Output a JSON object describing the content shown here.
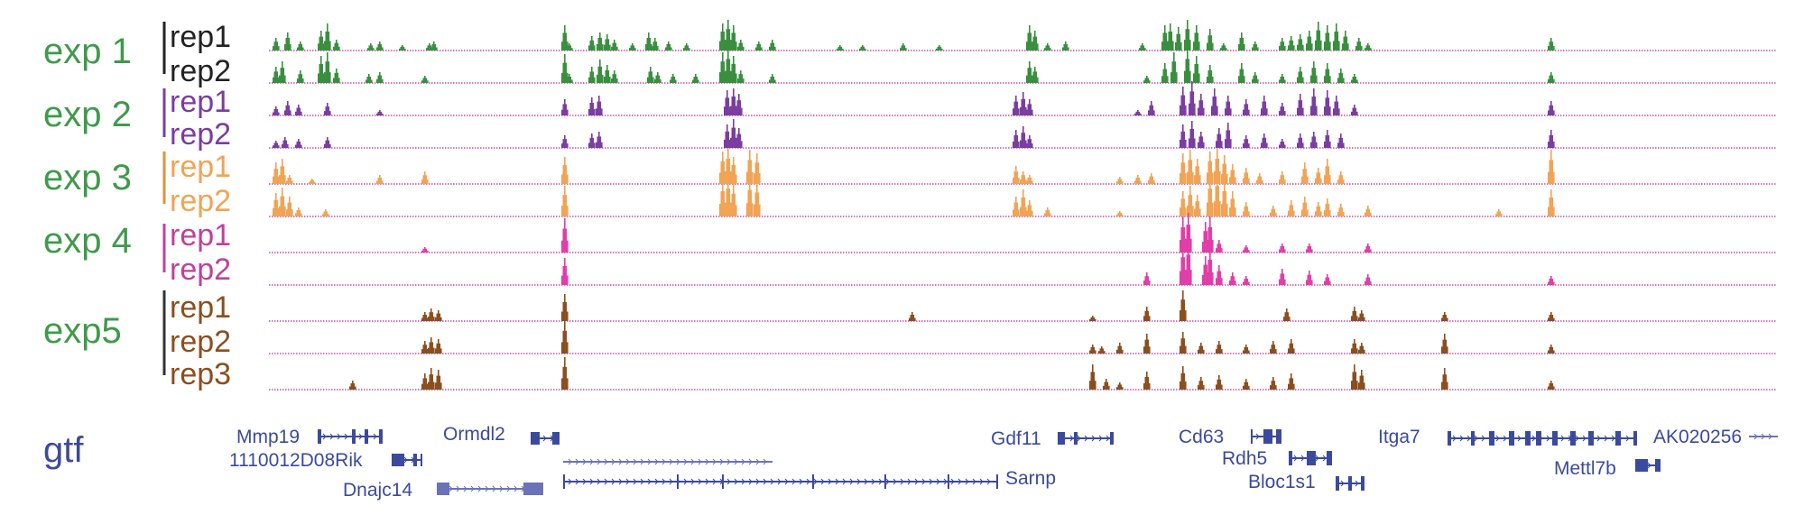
{
  "colors": {
    "exp_label": "#3f9a4a",
    "gtf_label": "#3b4a9c",
    "baseline": "#c04fb0",
    "gene": "#3b4a9c",
    "gene_light": "#6b73b8"
  },
  "experiments": [
    {
      "label": "exp 1",
      "color": "#3a8f3f",
      "rep_text_color": "#222222",
      "reps": [
        {
          "label": "rep1"
        },
        {
          "label": "rep2"
        }
      ]
    },
    {
      "label": "exp 2",
      "color": "#7a3da0",
      "rep_text_color": "#7a3da0",
      "reps": [
        {
          "label": "rep1"
        },
        {
          "label": "rep2"
        }
      ]
    },
    {
      "label": "exp 3",
      "color": "#f0a454",
      "rep_text_color": "#f0a454",
      "reps": [
        {
          "label": "rep1"
        },
        {
          "label": "rep2"
        }
      ]
    },
    {
      "label": "exp 4",
      "color": "#e03ea8",
      "rep_text_color": "#c0409a",
      "reps": [
        {
          "label": "rep1"
        },
        {
          "label": "rep2"
        }
      ]
    },
    {
      "label": "exp5",
      "color": "#8a4f1e",
      "rep_text_color": "#8a4f1e",
      "reps": [
        {
          "label": "rep1"
        },
        {
          "label": "rep2"
        },
        {
          "label": "rep3"
        }
      ]
    }
  ],
  "gtf": {
    "label": "gtf",
    "genes": [
      {
        "name": "Mmp19"
      },
      {
        "name": "1110012D08Rik"
      },
      {
        "name": "Dnajc14"
      },
      {
        "name": "Ormdl2"
      },
      {
        "name": "Sarnp"
      },
      {
        "name": "Gdf11"
      },
      {
        "name": "Cd63"
      },
      {
        "name": "Rdh5"
      },
      {
        "name": "Bloc1s1"
      },
      {
        "name": "Itga7"
      },
      {
        "name": "AK020256"
      },
      {
        "name": "Mettl7b"
      }
    ]
  }
}
